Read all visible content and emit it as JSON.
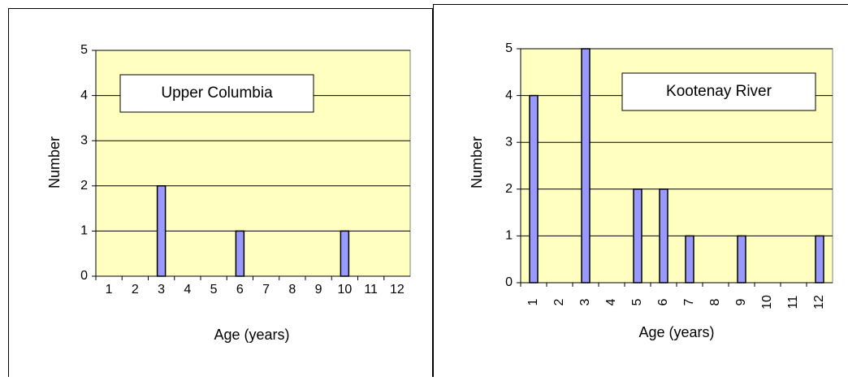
{
  "chart_data": [
    {
      "type": "bar",
      "title": "Upper Columbia",
      "x_label": "Age (years)",
      "y_label": "Number",
      "categories": [
        "1",
        "2",
        "3",
        "4",
        "5",
        "6",
        "7",
        "8",
        "9",
        "10",
        "11",
        "12"
      ],
      "values": [
        0,
        0,
        2,
        0,
        0,
        1,
        0,
        0,
        0,
        1,
        0,
        0
      ],
      "color": "#9999ff",
      "ylim": [
        0,
        5
      ],
      "yticks": [
        0,
        1,
        2,
        3,
        4,
        5
      ],
      "grid": true
    },
    {
      "type": "bar",
      "title": "Kootenay River",
      "x_label": "Age (years)",
      "y_label": "Number",
      "categories": [
        "1",
        "2",
        "3",
        "4",
        "5",
        "6",
        "7",
        "8",
        "9",
        "10",
        "11",
        "12"
      ],
      "values": [
        4,
        0,
        5,
        0,
        2,
        2,
        1,
        0,
        1,
        0,
        0,
        1
      ],
      "color": "#9999ff",
      "ylim": [
        0,
        5
      ],
      "yticks": [
        0,
        1,
        2,
        3,
        4,
        5
      ],
      "grid": true
    }
  ]
}
